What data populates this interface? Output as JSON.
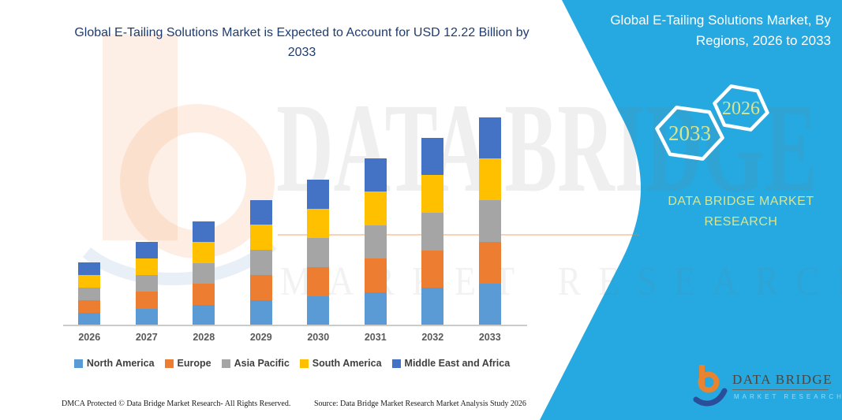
{
  "chart_data": {
    "type": "bar",
    "stacked": true,
    "title": "Global E-Tailing Solutions Market is Expected to Account for USD 12.22 Billion by 2033",
    "unit": "USD Billion",
    "categories": [
      "2026",
      "2027",
      "2028",
      "2029",
      "2030",
      "2031",
      "2032",
      "2033"
    ],
    "series": [
      {
        "name": "North America",
        "color": "#5B9BD5",
        "values": [
          0.74,
          0.98,
          1.22,
          1.47,
          1.71,
          1.96,
          2.2,
          2.44
        ]
      },
      {
        "name": "Europe",
        "color": "#ED7D31",
        "values": [
          0.74,
          0.98,
          1.22,
          1.47,
          1.71,
          1.96,
          2.2,
          2.44
        ]
      },
      {
        "name": "Asia Pacific",
        "color": "#A5A5A5",
        "values": [
          0.74,
          0.98,
          1.22,
          1.47,
          1.71,
          1.96,
          2.2,
          2.44
        ]
      },
      {
        "name": "South America",
        "color": "#FFC000",
        "values": [
          0.74,
          0.98,
          1.22,
          1.47,
          1.71,
          1.96,
          2.2,
          2.44
        ]
      },
      {
        "name": "Middle East and Africa",
        "color": "#4472C4",
        "values": [
          0.74,
          0.98,
          1.22,
          1.47,
          1.71,
          1.96,
          2.2,
          2.44
        ]
      }
    ],
    "totals": [
      3.68,
      4.9,
      6.12,
      7.34,
      8.56,
      9.78,
      11.0,
      12.22
    ],
    "xlabel": "",
    "ylabel": "",
    "y_axis_visible": false,
    "grid": false,
    "legend_position": "bottom"
  },
  "banner": {
    "heading_line1": "Global E-Tailing Solutions Market, By",
    "heading_line2": "Regions, 2026 to 2033",
    "hexagons": [
      "2033",
      "2026"
    ],
    "brand": "DATA BRIDGE MARKET RESEARCH",
    "accent_color": "#25A9E0",
    "label_color": "#D9E48F"
  },
  "watermark": {
    "primary": "DATA BRIDGE",
    "secondary": "MARKET RESEARCH"
  },
  "corner_logo": {
    "name": "DATA BRIDGE",
    "subtext": "MARKET RESEARCH"
  },
  "footer": {
    "left": "DMCA Protected © Data Bridge Market Research-  All Rights Reserved.",
    "source": "Source: Data Bridge Market Research  Market Analysis Study 2026"
  }
}
